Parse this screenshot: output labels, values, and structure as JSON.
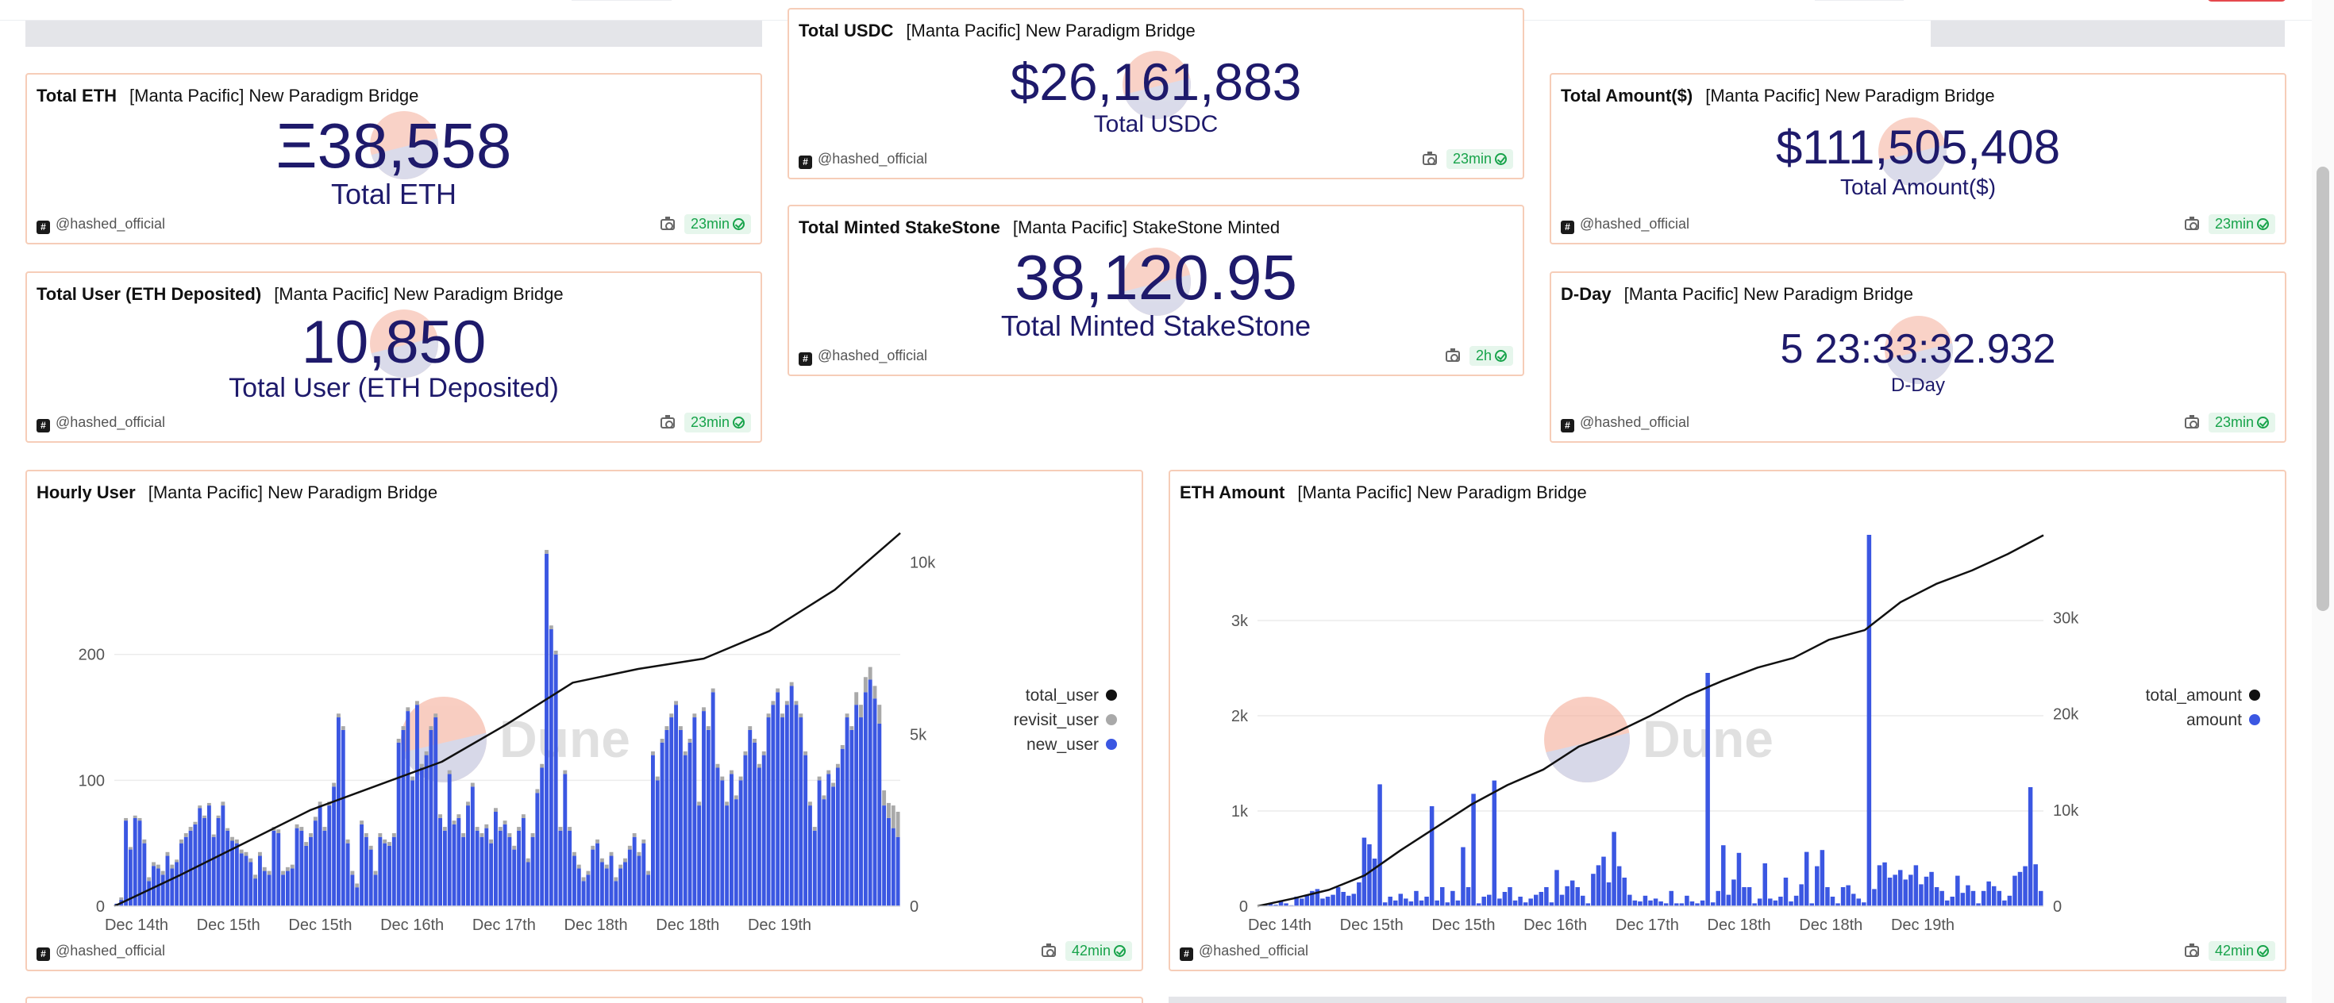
{
  "counters": [
    {
      "id": "total-eth",
      "name": "Total ETH",
      "subtitle": "[Manta Pacific] New Paradigm Bridge",
      "value": "Ξ38,558",
      "label": "Total ETH",
      "author": "@hashed_official",
      "freshness": "23min"
    },
    {
      "id": "total-usdc",
      "name": "Total USDC",
      "subtitle": "[Manta Pacific] New Paradigm Bridge",
      "value": "$26,161,883",
      "label": "Total USDC",
      "author": "@hashed_official",
      "freshness": "23min"
    },
    {
      "id": "total-amount",
      "name": "Total Amount($)",
      "subtitle": "[Manta Pacific] New Paradigm Bridge",
      "value": "$111,505,408",
      "label": "Total Amount($)",
      "author": "@hashed_official",
      "freshness": "23min"
    },
    {
      "id": "total-minted",
      "name": "Total Minted StakeStone",
      "subtitle": "[Manta Pacific] StakeStone Minted",
      "value": "38,120.95",
      "label": "Total Minted StakeStone",
      "author": "@hashed_official",
      "freshness": "2h"
    },
    {
      "id": "total-user",
      "name": "Total User (ETH Deposited)",
      "subtitle": "[Manta Pacific] New Paradigm Bridge",
      "value": "10,850",
      "label": "Total User (ETH Deposited)",
      "author": "@hashed_official",
      "freshness": "23min"
    },
    {
      "id": "d-day",
      "name": "D-Day",
      "subtitle": "[Manta Pacific] New Paradigm Bridge",
      "value": "5 23:33:32.932",
      "label": "D-Day",
      "author": "@hashed_official",
      "freshness": "23min"
    }
  ],
  "charts": {
    "hourly": {
      "name": "Hourly User",
      "subtitle": "[Manta Pacific] New Paradigm Bridge",
      "author": "@hashed_official",
      "freshness": "42min",
      "watermark": "Dune"
    },
    "eth": {
      "name": "ETH Amount",
      "subtitle": "[Manta Pacific] New Paradigm Bridge",
      "author": "@hashed_official",
      "freshness": "42min",
      "watermark": "Dune"
    }
  },
  "colors": {
    "bar_blue": "#3b57e2",
    "bar_gray": "#a9a9a9",
    "line": "#111111",
    "value_navy": "#1e1a6b",
    "card_border": "#f6cdb8",
    "badge_green": "#17a34a"
  },
  "chart_data": [
    {
      "type": "bar",
      "title": "Hourly User",
      "x_tick_labels": [
        "Dec 14th",
        "Dec 15th",
        "Dec 15th",
        "Dec 16th",
        "Dec 17th",
        "Dec 18th",
        "Dec 18th",
        "Dec 19th"
      ],
      "y_left_ticks": [
        0,
        100,
        200
      ],
      "y_left_tick_labels": [
        "0",
        "100",
        "200"
      ],
      "y_right_ticks": [
        0,
        5000,
        10000
      ],
      "y_right_tick_labels": [
        "0",
        "5k",
        "10k"
      ],
      "ylim_left": [
        0,
        295
      ],
      "ylim_right": [
        0,
        10800
      ],
      "legend_position": "right",
      "series": [
        {
          "name": "total_user",
          "type": "line",
          "axis": "right",
          "values": [
            0,
            900,
            1850,
            2800,
            3500,
            4200,
            5300,
            6500,
            6900,
            7200,
            8000,
            9200,
            10850
          ]
        },
        {
          "name": "revisit_user",
          "type": "bar",
          "axis": "left",
          "values": [
            0,
            2,
            2,
            2,
            2,
            2,
            3,
            3,
            3,
            3,
            3,
            3,
            3,
            2,
            3,
            3,
            3,
            2,
            2,
            2,
            2,
            2,
            2,
            3,
            2,
            3,
            3,
            3,
            3,
            3,
            3,
            3,
            3,
            3,
            3,
            3,
            3,
            3,
            3,
            3,
            3,
            3,
            3,
            3,
            3,
            3,
            3,
            3,
            3,
            3,
            3,
            3,
            3,
            3,
            3,
            3,
            3,
            3,
            3,
            3,
            3,
            3,
            3,
            3,
            3,
            3,
            3,
            3,
            3,
            3,
            3,
            3,
            3,
            3,
            3,
            3,
            3,
            3,
            3,
            3,
            3,
            3,
            3,
            3,
            3,
            3,
            3,
            3,
            3,
            3,
            3,
            3,
            3,
            3,
            3,
            3,
            3,
            3,
            3,
            3,
            3,
            3,
            3,
            3,
            3,
            3,
            3,
            3,
            3,
            3,
            3,
            3,
            3,
            3,
            3,
            3,
            3,
            3,
            3,
            3,
            3,
            3,
            3,
            3,
            3,
            3,
            3,
            3,
            3,
            3,
            3,
            3,
            3,
            3,
            3,
            3,
            3,
            3,
            3,
            3,
            3,
            3,
            3,
            3,
            3,
            3,
            3,
            3,
            3,
            3,
            3,
            3,
            3,
            3,
            3,
            3,
            3,
            3,
            3,
            3,
            10,
            10,
            12,
            10,
            10,
            15,
            12,
            12,
            18,
            20,
            14,
            10,
            12,
            10,
            12,
            20
          ]
        },
        {
          "name": "new_user",
          "type": "bar",
          "axis": "left",
          "values": [
            2,
            5,
            68,
            45,
            70,
            68,
            50,
            20,
            32,
            30,
            25,
            40,
            30,
            35,
            50,
            55,
            60,
            65,
            78,
            70,
            80,
            55,
            70,
            80,
            60,
            52,
            50,
            42,
            40,
            35,
            22,
            40,
            28,
            25,
            60,
            58,
            25,
            28,
            30,
            62,
            60,
            48,
            55,
            68,
            80,
            60,
            80,
            95,
            150,
            140,
            50,
            25,
            15,
            65,
            55,
            45,
            25,
            55,
            50,
            48,
            55,
            130,
            140,
            155,
            100,
            160,
            110,
            120,
            140,
            150,
            70,
            60,
            105,
            65,
            70,
            55,
            80,
            95,
            60,
            55,
            62,
            50,
            75,
            60,
            65,
            55,
            45,
            60,
            70,
            35,
            55,
            90,
            110,
            280,
            220,
            200,
            60,
            105,
            60,
            40,
            30,
            20,
            25,
            45,
            50,
            35,
            30,
            40,
            20,
            30,
            35,
            45,
            55,
            40,
            50,
            25,
            120,
            100,
            130,
            140,
            150,
            160,
            140,
            120,
            130,
            150,
            80,
            155,
            140,
            170,
            110,
            100,
            80,
            105,
            85,
            100,
            120,
            140,
            130,
            110,
            120,
            150,
            160,
            170,
            150,
            160,
            175,
            160,
            150,
            120,
            80,
            60,
            100,
            85,
            105,
            95,
            110,
            125,
            150,
            140,
            160,
            150,
            170,
            180,
            165,
            145,
            80,
            70,
            62,
            55
          ]
        }
      ]
    },
    {
      "type": "bar",
      "title": "ETH Amount",
      "x_tick_labels": [
        "Dec 14th",
        "Dec 15th",
        "Dec 15th",
        "Dec 16th",
        "Dec 17th",
        "Dec 18th",
        "Dec 18th",
        "Dec 19th"
      ],
      "y_left_ticks": [
        0,
        1000,
        2000,
        3000
      ],
      "y_left_tick_labels": [
        "0",
        "1k",
        "2k",
        "3k"
      ],
      "y_right_ticks": [
        0,
        10000,
        20000,
        30000
      ],
      "y_right_tick_labels": [
        "0",
        "10k",
        "20k",
        "30k"
      ],
      "ylim_left": [
        0,
        3900
      ],
      "ylim_right": [
        0,
        38600
      ],
      "legend_position": "right",
      "series": [
        {
          "name": "total_amount",
          "type": "line",
          "axis": "right",
          "values": [
            0,
            800,
            1700,
            3200,
            5800,
            8200,
            10600,
            12600,
            14200,
            16600,
            18000,
            19800,
            21800,
            23400,
            24800,
            25800,
            27700,
            28700,
            31600,
            33500,
            34900,
            36600,
            38558
          ]
        },
        {
          "name": "amount",
          "type": "bar",
          "axis": "left",
          "values": [
            0,
            20,
            30,
            15,
            60,
            30,
            10,
            100,
            80,
            120,
            160,
            180,
            80,
            100,
            120,
            200,
            150,
            110,
            130,
            250,
            720,
            650,
            500,
            1280,
            40,
            100,
            60,
            130,
            80,
            50,
            160,
            60,
            100,
            1050,
            60,
            200,
            40,
            160,
            60,
            620,
            200,
            1180,
            30,
            100,
            120,
            1320,
            80,
            150,
            200,
            60,
            100,
            40,
            80,
            120,
            150,
            200,
            40,
            380,
            120,
            210,
            270,
            200,
            110,
            30,
            340,
            430,
            520,
            250,
            780,
            420,
            300,
            120,
            60,
            50,
            110,
            60,
            80,
            50,
            30,
            160,
            30,
            30,
            110,
            50,
            30,
            60,
            2450,
            40,
            160,
            640,
            120,
            280,
            560,
            200,
            200,
            30,
            80,
            450,
            80,
            60,
            100,
            300,
            50,
            110,
            230,
            570,
            30,
            420,
            590,
            200,
            100,
            30,
            200,
            220,
            130,
            80,
            40,
            3900,
            180,
            430,
            460,
            300,
            330,
            380,
            280,
            330,
            430,
            230,
            310,
            360,
            200,
            160,
            60,
            100,
            320,
            140,
            220,
            160,
            30,
            160,
            260,
            210,
            160,
            60,
            110,
            320,
            360,
            420,
            1250,
            440,
            160
          ]
        }
      ]
    }
  ]
}
